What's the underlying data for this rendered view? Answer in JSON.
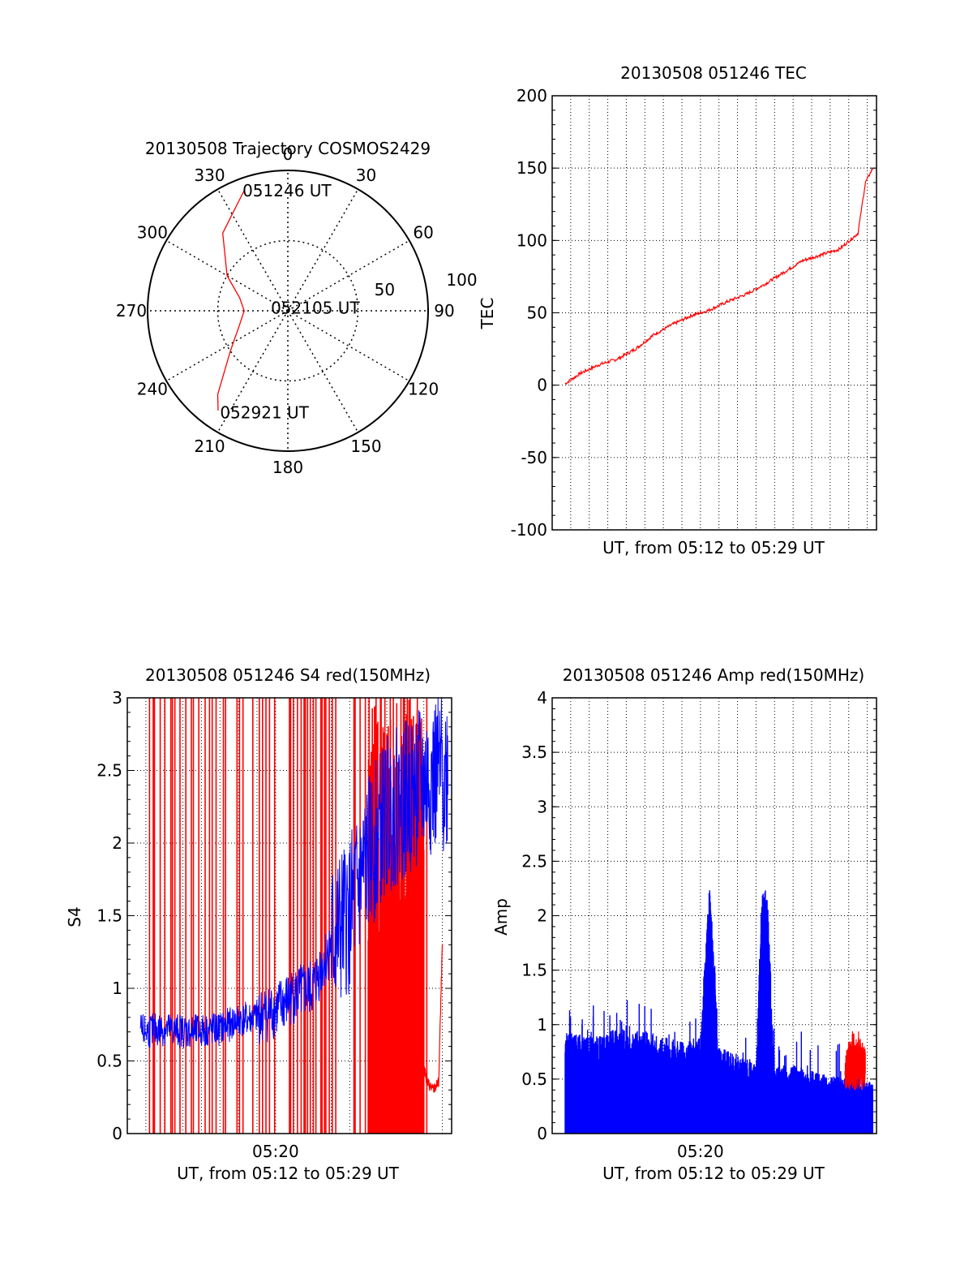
{
  "colors": {
    "red": "#ff0000",
    "blue": "#0000ff",
    "black": "#000000"
  },
  "chart_data": [
    {
      "type": "polar",
      "title": "20130508 Trajectory COSMOS2429",
      "azimuth_labels": [
        "0",
        "30",
        "60",
        "90",
        "120",
        "150",
        "180",
        "210",
        "240",
        "270",
        "300",
        "330"
      ],
      "elevation_labels": [
        "50",
        "100"
      ],
      "trajectory": {
        "color": "red",
        "points": [
          {
            "az": 340,
            "el": 8
          },
          {
            "az": 320,
            "el": 25
          },
          {
            "az": 300,
            "el": 45
          },
          {
            "az": 285,
            "el": 58
          },
          {
            "az": 270,
            "el": 62
          },
          {
            "az": 252,
            "el": 57
          },
          {
            "az": 235,
            "el": 45
          },
          {
            "az": 220,
            "el": 20
          },
          {
            "az": 215,
            "el": 12
          }
        ]
      },
      "annotations": [
        {
          "text": "051246 UT",
          "az": 340,
          "el": 8
        },
        {
          "text": "052105 UT",
          "az": 280,
          "el": 80
        },
        {
          "text": "052921 UT",
          "az": 213,
          "el": 12
        }
      ]
    },
    {
      "type": "line",
      "title": "20130508 051246 TEC",
      "xlabel": "UT, from 05:12 to 05:29 UT",
      "ylabel": "TEC",
      "ylim": [
        -100,
        200
      ],
      "yticks": [
        "-100",
        "-50",
        "0",
        "50",
        "100",
        "150",
        "200"
      ],
      "xlim_minutes": [
        0,
        17.5
      ],
      "grid": true,
      "series": [
        {
          "color": "red",
          "x": [
            0.7,
            1.5,
            2.5,
            3.5,
            4.5,
            5.5,
            6.5,
            7.5,
            8.5,
            9.5,
            10.5,
            11.5,
            12.5,
            13.5,
            14.5,
            15.5,
            16.5,
            16.9,
            17.3
          ],
          "y": [
            1,
            8,
            14,
            18,
            25,
            35,
            42,
            48,
            52,
            58,
            63,
            70,
            78,
            86,
            90,
            94,
            105,
            140,
            150
          ]
        }
      ]
    },
    {
      "type": "line",
      "title": "20130508 051246 S4 red(150MHz)",
      "xlabel": "UT, from 05:12 to 05:29 UT",
      "ylabel": "S4",
      "ylim": [
        0,
        3
      ],
      "yticks": [
        "0",
        "0.5",
        "1",
        "1.5",
        "2",
        "2.5",
        "3"
      ],
      "xticks": [
        "05:20"
      ],
      "xlim_minutes": [
        0,
        17.5
      ],
      "grid": true,
      "series": [
        {
          "color": "blue",
          "x": [
            0.7,
            2,
            3.5,
            5,
            6,
            7,
            8,
            9,
            10,
            11,
            12,
            13,
            14,
            15,
            16,
            17.3
          ],
          "y": [
            0.7,
            0.72,
            0.7,
            0.72,
            0.78,
            0.8,
            0.85,
            0.95,
            1.0,
            1.3,
            1.5,
            1.9,
            2.2,
            2.3,
            2.4,
            2.5
          ]
        },
        {
          "color": "red",
          "x": [
            15.9,
            16.2,
            16.5,
            16.8,
            17.0
          ],
          "y": [
            0.5,
            0.35,
            0.3,
            0.35,
            1.3
          ]
        }
      ]
    },
    {
      "type": "line",
      "title": "20130508 051246 Amp red(150MHz)",
      "xlabel": "UT, from 05:12 to 05:29 UT",
      "ylabel": "Amp",
      "ylim": [
        0,
        4
      ],
      "yticks": [
        "0",
        "0.5",
        "1",
        "1.5",
        "2",
        "2.5",
        "3",
        "3.5",
        "4"
      ],
      "xticks": [
        "05:20"
      ],
      "xlim_minutes": [
        0,
        17.5
      ],
      "grid": true,
      "series": [
        {
          "color": "blue",
          "x": [
            0.7,
            2,
            3,
            4,
            5,
            6,
            7,
            8,
            8.5,
            9,
            10,
            11,
            11.3,
            11.6,
            12,
            13,
            14,
            15,
            16,
            17.3
          ],
          "y": [
            0.9,
            0.85,
            0.9,
            0.95,
            0.9,
            0.85,
            0.8,
            0.85,
            2.35,
            0.75,
            0.7,
            0.6,
            2.25,
            2.25,
            0.6,
            0.6,
            0.55,
            0.5,
            0.5,
            0.45
          ]
        },
        {
          "color": "red",
          "x": [
            15.8,
            16.2,
            16.6,
            16.9
          ],
          "y": [
            0.7,
            0.95,
            0.9,
            0.75
          ]
        }
      ]
    }
  ]
}
